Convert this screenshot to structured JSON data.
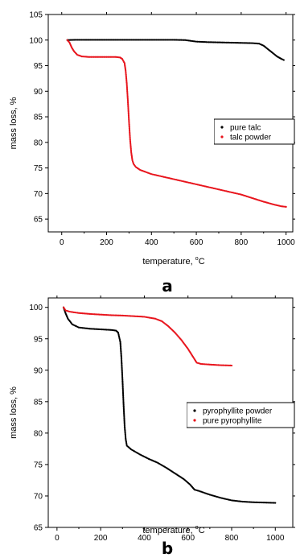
{
  "colors": {
    "black_series": "#000000",
    "red_series": "#e8141c",
    "axis": "#000000"
  },
  "chart_data": [
    {
      "type": "scatter",
      "panel_label": "a",
      "xlabel": "temperature, ",
      "xlabel_unit": "C",
      "ylabel": "mass loss, %",
      "xlim": [
        -60,
        1030
      ],
      "ylim": [
        62.5,
        105
      ],
      "xticks": [
        0,
        200,
        400,
        600,
        800,
        1000
      ],
      "yticks": [
        65,
        70,
        75,
        80,
        85,
        90,
        95,
        100,
        105
      ],
      "legend_position": "center-right",
      "series": [
        {
          "name": "pure talc",
          "color": "#000000",
          "points": [
            [
              25,
              100
            ],
            [
              60,
              100.05
            ],
            [
              100,
              100.05
            ],
            [
              200,
              100.05
            ],
            [
              300,
              100.05
            ],
            [
              400,
              100.05
            ],
            [
              500,
              100.05
            ],
            [
              550,
              100
            ],
            [
              600,
              99.7
            ],
            [
              650,
              99.6
            ],
            [
              700,
              99.55
            ],
            [
              750,
              99.5
            ],
            [
              800,
              99.45
            ],
            [
              850,
              99.4
            ],
            [
              880,
              99.3
            ],
            [
              900,
              98.9
            ],
            [
              920,
              98.2
            ],
            [
              940,
              97.5
            ],
            [
              960,
              96.8
            ],
            [
              980,
              96.3
            ],
            [
              990,
              96.1
            ]
          ]
        },
        {
          "name": "talc powder",
          "color": "#e8141c",
          "points": [
            [
              25,
              100
            ],
            [
              35,
              99.5
            ],
            [
              45,
              98.5
            ],
            [
              55,
              97.8
            ],
            [
              70,
              97.1
            ],
            [
              90,
              96.8
            ],
            [
              120,
              96.7
            ],
            [
              160,
              96.7
            ],
            [
              200,
              96.7
            ],
            [
              240,
              96.7
            ],
            [
              260,
              96.6
            ],
            [
              270,
              96.3
            ],
            [
              280,
              95.5
            ],
            [
              285,
              94
            ],
            [
              290,
              91.5
            ],
            [
              295,
              88
            ],
            [
              300,
              84
            ],
            [
              305,
              80.5
            ],
            [
              310,
              78
            ],
            [
              315,
              76.5
            ],
            [
              320,
              75.8
            ],
            [
              330,
              75.2
            ],
            [
              350,
              74.6
            ],
            [
              400,
              73.8
            ],
            [
              450,
              73.3
            ],
            [
              500,
              72.8
            ],
            [
              550,
              72.3
            ],
            [
              600,
              71.8
            ],
            [
              650,
              71.3
            ],
            [
              700,
              70.8
            ],
            [
              750,
              70.3
            ],
            [
              800,
              69.8
            ],
            [
              850,
              69.1
            ],
            [
              900,
              68.4
            ],
            [
              950,
              67.8
            ],
            [
              980,
              67.5
            ],
            [
              1000,
              67.4
            ]
          ]
        }
      ]
    },
    {
      "type": "scatter",
      "panel_label": "b",
      "xlabel": "temperature, ",
      "xlabel_unit": "C",
      "ylabel": "mass loss, %",
      "xlim": [
        -40,
        1080
      ],
      "ylim": [
        65,
        101.5
      ],
      "xticks": [
        0,
        200,
        400,
        600,
        800,
        1000
      ],
      "yticks": [
        65,
        70,
        75,
        80,
        85,
        90,
        95,
        100
      ],
      "legend_position": "center-right",
      "series": [
        {
          "name": "pyrophyllite powder",
          "color": "#000000",
          "points": [
            [
              30,
              100
            ],
            [
              40,
              99
            ],
            [
              50,
              98.2
            ],
            [
              70,
              97.3
            ],
            [
              100,
              96.8
            ],
            [
              150,
              96.6
            ],
            [
              200,
              96.5
            ],
            [
              250,
              96.4
            ],
            [
              270,
              96.3
            ],
            [
              280,
              96
            ],
            [
              290,
              94.5
            ],
            [
              295,
              92
            ],
            [
              300,
              88.5
            ],
            [
              305,
              84.5
            ],
            [
              310,
              81
            ],
            [
              315,
              79
            ],
            [
              320,
              78
            ],
            [
              340,
              77.4
            ],
            [
              380,
              76.6
            ],
            [
              420,
              75.9
            ],
            [
              460,
              75.3
            ],
            [
              500,
              74.5
            ],
            [
              540,
              73.6
            ],
            [
              580,
              72.7
            ],
            [
              610,
              71.8
            ],
            [
              630,
              71
            ],
            [
              650,
              70.8
            ],
            [
              700,
              70.2
            ],
            [
              750,
              69.7
            ],
            [
              800,
              69.3
            ],
            [
              850,
              69.1
            ],
            [
              900,
              69
            ],
            [
              950,
              68.95
            ],
            [
              1000,
              68.9
            ]
          ]
        },
        {
          "name": "pure pyrophyllite",
          "color": "#e8141c",
          "points": [
            [
              30,
              100
            ],
            [
              40,
              99.5
            ],
            [
              60,
              99.3
            ],
            [
              100,
              99.1
            ],
            [
              150,
              98.95
            ],
            [
              200,
              98.85
            ],
            [
              250,
              98.75
            ],
            [
              300,
              98.7
            ],
            [
              350,
              98.6
            ],
            [
              400,
              98.5
            ],
            [
              450,
              98.2
            ],
            [
              480,
              97.8
            ],
            [
              510,
              97
            ],
            [
              540,
              96
            ],
            [
              570,
              94.8
            ],
            [
              600,
              93.4
            ],
            [
              620,
              92.3
            ],
            [
              640,
              91.2
            ],
            [
              660,
              91
            ],
            [
              700,
              90.9
            ],
            [
              750,
              90.8
            ],
            [
              800,
              90.75
            ]
          ]
        }
      ]
    }
  ]
}
